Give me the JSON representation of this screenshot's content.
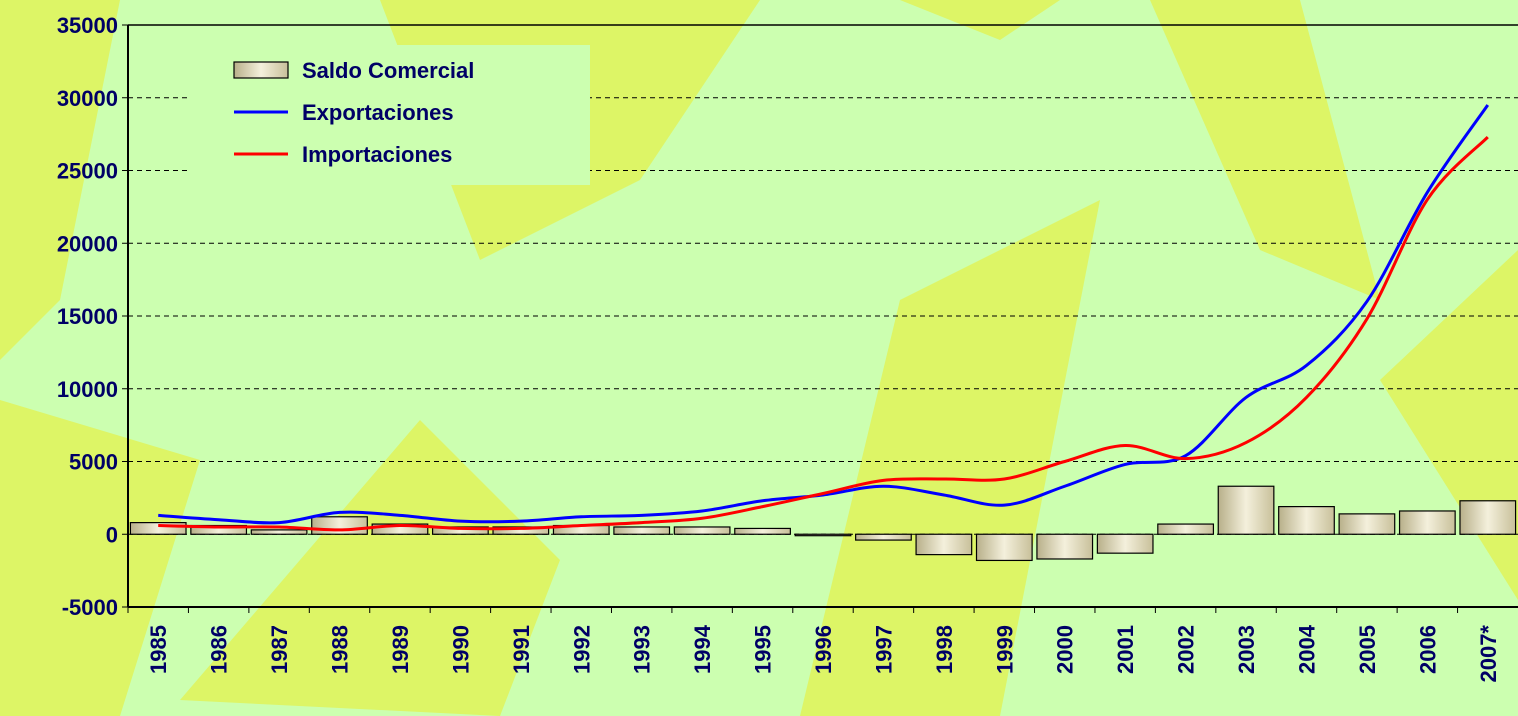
{
  "chart_data": {
    "type": "bar-line",
    "categories": [
      "1985",
      "1986",
      "1987",
      "1988",
      "1989",
      "1990",
      "1991",
      "1992",
      "1993",
      "1994",
      "1995",
      "1996",
      "1997",
      "1998",
      "1999",
      "2000",
      "2001",
      "2002",
      "2003",
      "2004",
      "2005",
      "2006",
      "2007*"
    ],
    "series": [
      {
        "name": "Saldo Comercial",
        "kind": "bar",
        "color": "#e6e0c0",
        "values": [
          800,
          600,
          300,
          1200,
          700,
          500,
          500,
          600,
          500,
          500,
          400,
          -100,
          -400,
          -1400,
          -1800,
          -1700,
          -1300,
          700,
          3300,
          1900,
          1400,
          1600,
          2300
        ]
      },
      {
        "name": "Exportaciones",
        "kind": "line",
        "color": "#0000ff",
        "values": [
          1300,
          1000,
          800,
          1500,
          1300,
          900,
          900,
          1200,
          1300,
          1600,
          2300,
          2700,
          3300,
          2700,
          2000,
          3300,
          4800,
          5400,
          9400,
          11600,
          16000,
          23500,
          29500
        ]
      },
      {
        "name": "Importaciones",
        "kind": "line",
        "color": "#ff0000",
        "values": [
          600,
          500,
          500,
          300,
          600,
          400,
          400,
          600,
          800,
          1100,
          1900,
          2800,
          3700,
          3800,
          3800,
          5000,
          6100,
          5200,
          6300,
          9400,
          14800,
          23000,
          27300
        ]
      }
    ],
    "ylim": [
      -5000,
      35000
    ],
    "yticks": [
      -5000,
      0,
      5000,
      10000,
      15000,
      20000,
      25000,
      30000,
      35000
    ],
    "grid": true,
    "legend": "upper left"
  }
}
